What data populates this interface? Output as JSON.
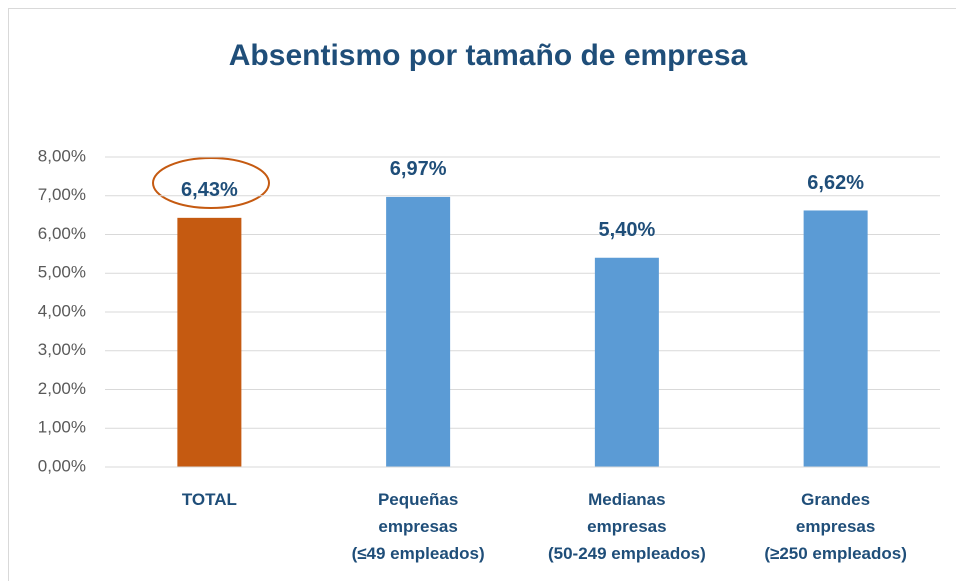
{
  "chart_data": {
    "type": "bar",
    "title": "Absentismo por tamaño de empresa",
    "categories": [
      "TOTAL",
      "Pequeñas\nempresas\n(≤49 empleados)",
      "Medianas\nempresas\n(50-249 empleados)",
      "Grandes\nempresas\n(≥250 empleados)"
    ],
    "values": [
      6.43,
      6.97,
      5.4,
      6.62
    ],
    "value_labels": [
      "6,43%",
      "6,97%",
      "5,40%",
      "6,62%"
    ],
    "colors": [
      "#c55a11",
      "#5b9bd5",
      "#5b9bd5",
      "#5b9bd5"
    ],
    "ylim": [
      0,
      8
    ],
    "yticks": [
      {
        "value": 0,
        "label": "0,00%"
      },
      {
        "value": 1,
        "label": "1,00%"
      },
      {
        "value": 2,
        "label": "2,00%"
      },
      {
        "value": 3,
        "label": "3,00%"
      },
      {
        "value": 4,
        "label": "4,00%"
      },
      {
        "value": 5,
        "label": "5,00%"
      },
      {
        "value": 6,
        "label": "6,00%"
      },
      {
        "value": 7,
        "label": "7,00%"
      },
      {
        "value": 8,
        "label": "8,00%"
      }
    ],
    "grid": true
  }
}
